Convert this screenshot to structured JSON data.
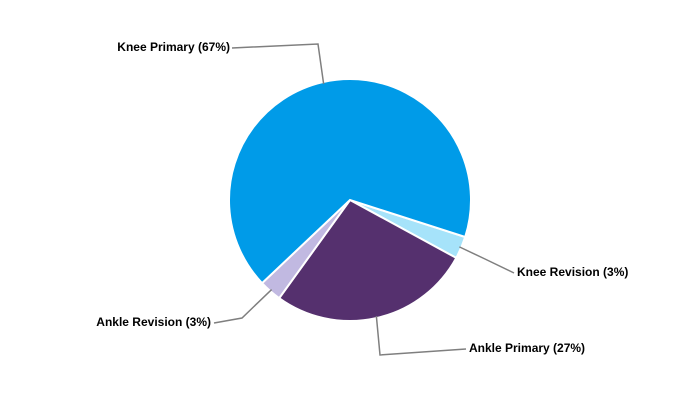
{
  "chart_data": {
    "type": "pie",
    "value_labels": [
      "Knee Revision (3%)",
      "Ankle Primary (27%)",
      "Ankle Revision (3%)",
      "Knee Primary (67%)"
    ],
    "values": [
      3,
      27,
      3,
      67
    ],
    "colors": [
      "#a6e3fa",
      "#55306e",
      "#c1b9e1",
      "#009be8"
    ]
  }
}
